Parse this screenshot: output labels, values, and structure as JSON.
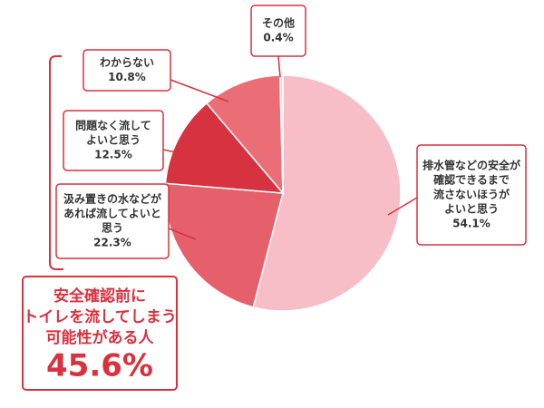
{
  "chart_data": {
    "type": "pie",
    "labels": [
      [
        "排水管などの安全が",
        "確認できるまで",
        "流さないほうが",
        "よいと思う"
      ],
      [
        "汲み置きの水などが",
        "あれば流してよいと",
        "思う"
      ],
      [
        "問題なく流して",
        "よいと思う"
      ],
      [
        "わからない"
      ],
      [
        "その他"
      ]
    ],
    "values": [
      54.1,
      22.3,
      12.5,
      10.8,
      0.4
    ],
    "value_labels": [
      "54.1%",
      "22.3%",
      "12.5%",
      "10.8%",
      "0.4%"
    ],
    "colors": [
      "#f8bec7",
      "#e5606b",
      "#d6323f",
      "#eb6e77",
      "#f9d0d5"
    ],
    "summary": {
      "lines": [
        "安全確認前に",
        "トイレを流してしまう",
        "可能性がある人"
      ],
      "value_label": "45.6%"
    }
  }
}
